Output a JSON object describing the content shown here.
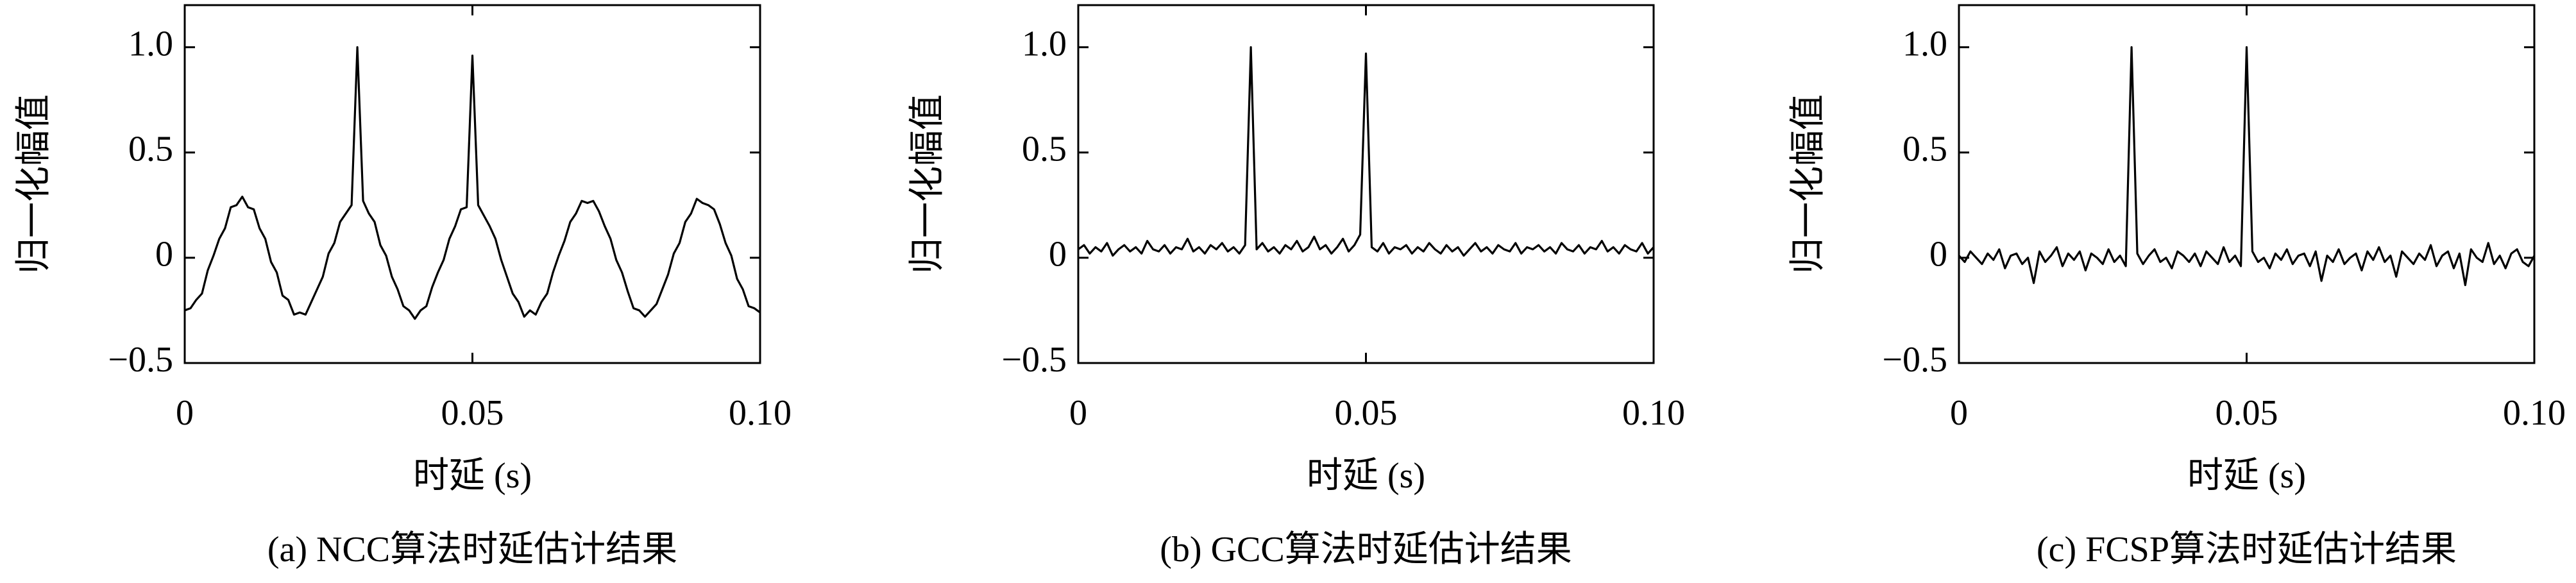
{
  "chart_data": [
    {
      "type": "line",
      "title": "(a) NCC算法时延估计结果",
      "xlabel": "时延 (s)",
      "ylabel": "归一化幅值",
      "color": "#000000",
      "xlim": [
        0,
        0.1
      ],
      "ylim": [
        -0.5,
        1.2
      ],
      "xticks": [
        0,
        0.05,
        {
          "value": 0.1,
          "label": "0.10"
        }
      ],
      "yticks": [
        {
          "value": -0.5,
          "label": "−0.5"
        },
        0,
        0.5,
        {
          "value": 1,
          "label": "1.0"
        }
      ],
      "x": [
        0,
        0.001,
        0.002,
        0.003,
        0.004,
        0.005,
        0.006,
        0.007,
        0.008,
        0.009,
        0.01,
        0.011,
        0.012,
        0.013,
        0.014,
        0.015,
        0.016,
        0.017,
        0.018,
        0.019,
        0.02,
        0.021,
        0.022,
        0.023,
        0.024,
        0.025,
        0.026,
        0.027,
        0.028,
        0.029,
        0.03,
        0.031,
        0.032,
        0.033,
        0.034,
        0.035,
        0.036,
        0.037,
        0.038,
        0.039,
        0.04,
        0.041,
        0.042,
        0.043,
        0.044,
        0.045,
        0.046,
        0.047,
        0.048,
        0.049,
        0.05,
        0.051,
        0.052,
        0.053,
        0.054,
        0.055,
        0.056,
        0.057,
        0.058,
        0.059,
        0.06,
        0.061,
        0.062,
        0.063,
        0.064,
        0.065,
        0.066,
        0.067,
        0.068,
        0.069,
        0.07,
        0.071,
        0.072,
        0.073,
        0.074,
        0.075,
        0.076,
        0.077,
        0.078,
        0.079,
        0.08,
        0.081,
        0.082,
        0.083,
        0.084,
        0.085,
        0.086,
        0.087,
        0.088,
        0.089,
        0.09,
        0.091,
        0.092,
        0.093,
        0.094,
        0.095,
        0.096,
        0.097,
        0.098,
        0.099,
        0.1
      ],
      "values": [
        -0.25,
        -0.24,
        -0.2,
        -0.17,
        -0.06,
        0.01,
        0.09,
        0.14,
        0.24,
        0.25,
        0.29,
        0.24,
        0.23,
        0.14,
        0.09,
        -0.02,
        -0.07,
        -0.18,
        -0.2,
        -0.27,
        -0.26,
        -0.27,
        -0.21,
        -0.15,
        -0.09,
        0.02,
        0.07,
        0.17,
        0.21,
        0.25,
        1.0,
        0.27,
        0.21,
        0.17,
        0.06,
        0.01,
        -0.09,
        -0.15,
        -0.23,
        -0.25,
        -0.29,
        -0.25,
        -0.23,
        -0.14,
        -0.07,
        -0.01,
        0.09,
        0.15,
        0.23,
        0.24,
        0.96,
        0.25,
        0.2,
        0.15,
        0.09,
        -0.01,
        -0.09,
        -0.17,
        -0.21,
        -0.28,
        -0.25,
        -0.27,
        -0.21,
        -0.17,
        -0.07,
        0.01,
        0.08,
        0.17,
        0.21,
        0.27,
        0.26,
        0.27,
        0.22,
        0.15,
        0.09,
        -0.01,
        -0.07,
        -0.16,
        -0.24,
        -0.25,
        -0.28,
        -0.25,
        -0.22,
        -0.15,
        -0.08,
        0.02,
        0.07,
        0.17,
        0.21,
        0.28,
        0.26,
        0.25,
        0.23,
        0.16,
        0.07,
        0.01,
        -0.1,
        -0.15,
        -0.23,
        -0.24,
        -0.26
      ]
    },
    {
      "type": "line",
      "title": "(b) GCC算法时延估计结果",
      "xlabel": "时延 (s)",
      "ylabel": "归一化幅值",
      "color": "#000000",
      "xlim": [
        0,
        0.1
      ],
      "ylim": [
        -0.5,
        1.2
      ],
      "xticks": [
        0,
        0.05,
        {
          "value": 0.1,
          "label": "0.10"
        }
      ],
      "yticks": [
        {
          "value": -0.5,
          "label": "−0.5"
        },
        0,
        0.5,
        {
          "value": 1,
          "label": "1.0"
        }
      ],
      "x": [
        0,
        0.001,
        0.002,
        0.003,
        0.004,
        0.005,
        0.006,
        0.007,
        0.008,
        0.009,
        0.01,
        0.011,
        0.012,
        0.013,
        0.014,
        0.015,
        0.016,
        0.017,
        0.018,
        0.019,
        0.02,
        0.021,
        0.022,
        0.023,
        0.024,
        0.025,
        0.026,
        0.027,
        0.028,
        0.029,
        0.03,
        0.031,
        0.032,
        0.033,
        0.034,
        0.035,
        0.036,
        0.037,
        0.038,
        0.039,
        0.04,
        0.041,
        0.042,
        0.043,
        0.044,
        0.045,
        0.046,
        0.047,
        0.048,
        0.049,
        0.05,
        0.051,
        0.052,
        0.053,
        0.054,
        0.055,
        0.056,
        0.057,
        0.058,
        0.059,
        0.06,
        0.061,
        0.062,
        0.063,
        0.064,
        0.065,
        0.066,
        0.067,
        0.068,
        0.069,
        0.07,
        0.071,
        0.072,
        0.073,
        0.074,
        0.075,
        0.076,
        0.077,
        0.078,
        0.079,
        0.08,
        0.081,
        0.082,
        0.083,
        0.084,
        0.085,
        0.086,
        0.087,
        0.088,
        0.089,
        0.09,
        0.091,
        0.092,
        0.093,
        0.094,
        0.095,
        0.096,
        0.097,
        0.098,
        0.099,
        0.1
      ],
      "values": [
        0.04,
        0.06,
        0.02,
        0.05,
        0.03,
        0.07,
        0.01,
        0.04,
        0.06,
        0.03,
        0.05,
        0.02,
        0.08,
        0.04,
        0.03,
        0.06,
        0.02,
        0.05,
        0.04,
        0.09,
        0.03,
        0.05,
        0.02,
        0.06,
        0.04,
        0.07,
        0.03,
        0.05,
        0.02,
        0.06,
        1.0,
        0.04,
        0.07,
        0.03,
        0.05,
        0.02,
        0.06,
        0.04,
        0.08,
        0.03,
        0.05,
        0.1,
        0.04,
        0.06,
        0.02,
        0.05,
        0.09,
        0.03,
        0.06,
        0.11,
        0.97,
        0.05,
        0.03,
        0.07,
        0.02,
        0.05,
        0.04,
        0.06,
        0.02,
        0.05,
        0.03,
        0.07,
        0.04,
        0.02,
        0.06,
        0.03,
        0.05,
        0.01,
        0.04,
        0.07,
        0.03,
        0.05,
        0.02,
        0.06,
        0.04,
        0.03,
        0.07,
        0.02,
        0.05,
        0.04,
        0.06,
        0.03,
        0.05,
        0.02,
        0.07,
        0.04,
        0.03,
        0.06,
        0.02,
        0.05,
        0.04,
        0.08,
        0.03,
        0.05,
        0.02,
        0.06,
        0.04,
        0.03,
        0.07,
        0.02,
        0.05
      ]
    },
    {
      "type": "line",
      "title": "(c) FCSP算法时延估计结果",
      "xlabel": "时延 (s)",
      "ylabel": "归一化幅值",
      "color": "#000000",
      "xlim": [
        0,
        0.1
      ],
      "ylim": [
        -0.5,
        1.2
      ],
      "xticks": [
        0,
        0.05,
        {
          "value": 0.1,
          "label": "0.10"
        }
      ],
      "yticks": [
        {
          "value": -0.5,
          "label": "−0.5"
        },
        0,
        0.5,
        {
          "value": 1,
          "label": "1.0"
        }
      ],
      "x": [
        0,
        0.001,
        0.002,
        0.003,
        0.004,
        0.005,
        0.006,
        0.007,
        0.008,
        0.009,
        0.01,
        0.011,
        0.012,
        0.013,
        0.014,
        0.015,
        0.016,
        0.017,
        0.018,
        0.019,
        0.02,
        0.021,
        0.022,
        0.023,
        0.024,
        0.025,
        0.026,
        0.027,
        0.028,
        0.029,
        0.03,
        0.031,
        0.032,
        0.033,
        0.034,
        0.035,
        0.036,
        0.037,
        0.038,
        0.039,
        0.04,
        0.041,
        0.042,
        0.043,
        0.044,
        0.045,
        0.046,
        0.047,
        0.048,
        0.049,
        0.05,
        0.051,
        0.052,
        0.053,
        0.054,
        0.055,
        0.056,
        0.057,
        0.058,
        0.059,
        0.06,
        0.061,
        0.062,
        0.063,
        0.064,
        0.065,
        0.066,
        0.067,
        0.068,
        0.069,
        0.07,
        0.071,
        0.072,
        0.073,
        0.074,
        0.075,
        0.076,
        0.077,
        0.078,
        0.079,
        0.08,
        0.081,
        0.082,
        0.083,
        0.084,
        0.085,
        0.086,
        0.087,
        0.088,
        0.089,
        0.09,
        0.091,
        0.092,
        0.093,
        0.094,
        0.095,
        0.096,
        0.097,
        0.098,
        0.099,
        0.1
      ],
      "values": [
        0.01,
        -0.02,
        0.03,
        0.0,
        -0.03,
        0.02,
        -0.01,
        0.04,
        -0.05,
        0.01,
        0.02,
        -0.03,
        0.0,
        -0.12,
        0.03,
        -0.02,
        0.01,
        0.05,
        -0.04,
        0.02,
        -0.01,
        0.03,
        -0.06,
        0.02,
        0.0,
        -0.03,
        0.04,
        -0.02,
        0.01,
        -0.04,
        1.0,
        0.02,
        -0.03,
        0.01,
        0.04,
        -0.02,
        0.0,
        -0.05,
        0.03,
        0.01,
        -0.02,
        0.02,
        -0.04,
        0.03,
        0.0,
        -0.03,
        0.05,
        -0.02,
        0.01,
        -0.04,
        1.0,
        0.03,
        -0.02,
        0.0,
        -0.05,
        0.02,
        -0.01,
        0.04,
        -0.03,
        0.01,
        0.02,
        -0.04,
        0.03,
        -0.11,
        0.01,
        -0.02,
        0.04,
        -0.03,
        0.0,
        0.02,
        -0.06,
        0.03,
        -0.01,
        0.05,
        -0.02,
        0.01,
        -0.09,
        0.03,
        0.0,
        -0.03,
        0.02,
        -0.01,
        0.06,
        -0.04,
        0.01,
        0.03,
        -0.05,
        0.02,
        -0.13,
        0.04,
        0.0,
        -0.02,
        0.07,
        -0.03,
        0.01,
        -0.05,
        0.02,
        0.04,
        -0.02,
        -0.04,
        0.01
      ]
    }
  ]
}
